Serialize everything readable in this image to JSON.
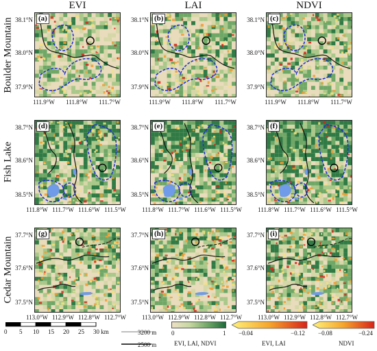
{
  "columns": [
    "EVI",
    "LAI",
    "NDVI"
  ],
  "rows": [
    {
      "name": "Boulder Mountain",
      "lat_ticks": [
        "38.1°N",
        "38.0°N",
        "37.9°N"
      ],
      "lon_ticks": [
        "111.9°W",
        "111.8°W",
        "111.7°W"
      ]
    },
    {
      "name": "Fish Lake",
      "lat_ticks": [
        "38.7°N",
        "38.6°N",
        "38.5°N"
      ],
      "lon_ticks": [
        "111.8°W",
        "111.7°W",
        "111.6°W",
        "111.5°W"
      ]
    },
    {
      "name": "Cedar Mountain",
      "lat_ticks": [
        "37.7°N",
        "37.6°N",
        "37.5°N"
      ],
      "lon_ticks": [
        "113.0°W",
        "112.9°W",
        "112.8°W",
        "112.7°W"
      ]
    }
  ],
  "panel_labels": [
    "(a)",
    "(b)",
    "(c)",
    "(d)",
    "(e)",
    "(f)",
    "(g)",
    "(h)",
    "(i)"
  ],
  "legend": {
    "scalebar_ticks": [
      "0",
      "5",
      "10",
      "15",
      "20",
      "25",
      "30 km"
    ],
    "contour_high": "3200 m",
    "contour_low": "2500 m",
    "cbar_green": {
      "min": "0",
      "max": "1",
      "label": "EVI, LAI, NDVI"
    },
    "cbar_evi_lai": {
      "min": "−0.04",
      "max": "−0.12",
      "label": "EVI, LAI"
    },
    "cbar_ndvi": {
      "min": "−0.08",
      "max": "−0.24",
      "label": "NDVI"
    }
  },
  "colors": {
    "aoi_outline": "#1f2fd6",
    "water": "#6f9be8",
    "green_high": "#1e6b3a",
    "decline_high": "#e0261c",
    "decline_low": "#fff27a"
  }
}
